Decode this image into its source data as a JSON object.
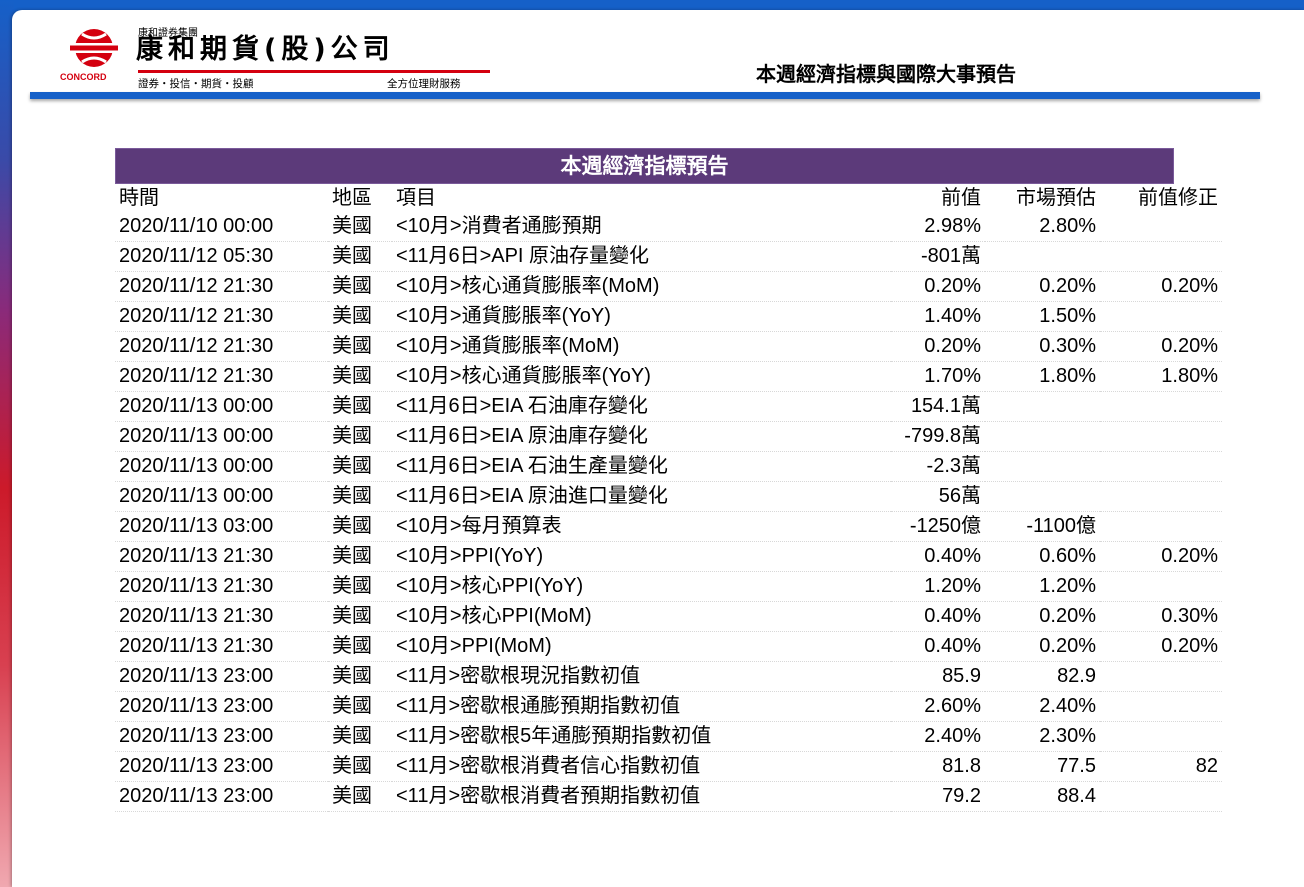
{
  "header": {
    "group_name": "康和證券集團",
    "company_name": "康和期貨(股)公司",
    "brand_en": "CONCORD",
    "services": "證券・投信・期貨・投顧",
    "slogan": "全方位理財服務",
    "page_title": "本週經濟指標與國際大事預告"
  },
  "colors": {
    "brand_red": "#d4000f",
    "accent_blue": "#1560c8",
    "table_header_purple": "#5c3a7a"
  },
  "table": {
    "title": "本週經濟指標預告",
    "columns": [
      "時間",
      "地區",
      "項目",
      "前值",
      "市場預估",
      "前值修正"
    ],
    "rows": [
      [
        "2020/11/10 00:00",
        "美國",
        "<10月>消費者通膨預期",
        "2.98%",
        "2.80%",
        ""
      ],
      [
        "2020/11/12 05:30",
        "美國",
        "<11月6日>API 原油存量變化",
        "-801萬",
        "",
        ""
      ],
      [
        "2020/11/12 21:30",
        "美國",
        "<10月>核心通貨膨脹率(MoM)",
        "0.20%",
        "0.20%",
        "0.20%"
      ],
      [
        "2020/11/12 21:30",
        "美國",
        "<10月>通貨膨脹率(YoY)",
        "1.40%",
        "1.50%",
        ""
      ],
      [
        "2020/11/12 21:30",
        "美國",
        "<10月>通貨膨脹率(MoM)",
        "0.20%",
        "0.30%",
        "0.20%"
      ],
      [
        "2020/11/12 21:30",
        "美國",
        "<10月>核心通貨膨脹率(YoY)",
        "1.70%",
        "1.80%",
        "1.80%"
      ],
      [
        "2020/11/13 00:00",
        "美國",
        "<11月6日>EIA 石油庫存變化",
        "154.1萬",
        "",
        ""
      ],
      [
        "2020/11/13 00:00",
        "美國",
        "<11月6日>EIA 原油庫存變化",
        "-799.8萬",
        "",
        ""
      ],
      [
        "2020/11/13 00:00",
        "美國",
        "<11月6日>EIA 石油生產量變化",
        "-2.3萬",
        "",
        ""
      ],
      [
        "2020/11/13 00:00",
        "美國",
        "<11月6日>EIA 原油進口量變化",
        "56萬",
        "",
        ""
      ],
      [
        "2020/11/13 03:00",
        "美國",
        "<10月>每月預算表",
        "-1250億",
        "-1100億",
        ""
      ],
      [
        "2020/11/13 21:30",
        "美國",
        "<10月>PPI(YoY)",
        "0.40%",
        "0.60%",
        "0.20%"
      ],
      [
        "2020/11/13 21:30",
        "美國",
        "<10月>核心PPI(YoY)",
        "1.20%",
        "1.20%",
        ""
      ],
      [
        "2020/11/13 21:30",
        "美國",
        "<10月>核心PPI(MoM)",
        "0.40%",
        "0.20%",
        "0.30%"
      ],
      [
        "2020/11/13 21:30",
        "美國",
        "<10月>PPI(MoM)",
        "0.40%",
        "0.20%",
        "0.20%"
      ],
      [
        "2020/11/13 23:00",
        "美國",
        "<11月>密歇根現況指數初值",
        "85.9",
        "82.9",
        ""
      ],
      [
        "2020/11/13 23:00",
        "美國",
        "<11月>密歇根通膨預期指數初值",
        "2.60%",
        "2.40%",
        ""
      ],
      [
        "2020/11/13 23:00",
        "美國",
        "<11月>密歇根5年通膨預期指數初值",
        "2.40%",
        "2.30%",
        ""
      ],
      [
        "2020/11/13 23:00",
        "美國",
        "<11月>密歇根消費者信心指數初值",
        "81.8",
        "77.5",
        "82"
      ],
      [
        "2020/11/13 23:00",
        "美國",
        "<11月>密歇根消費者預期指數初值",
        "79.2",
        "88.4",
        ""
      ]
    ]
  }
}
